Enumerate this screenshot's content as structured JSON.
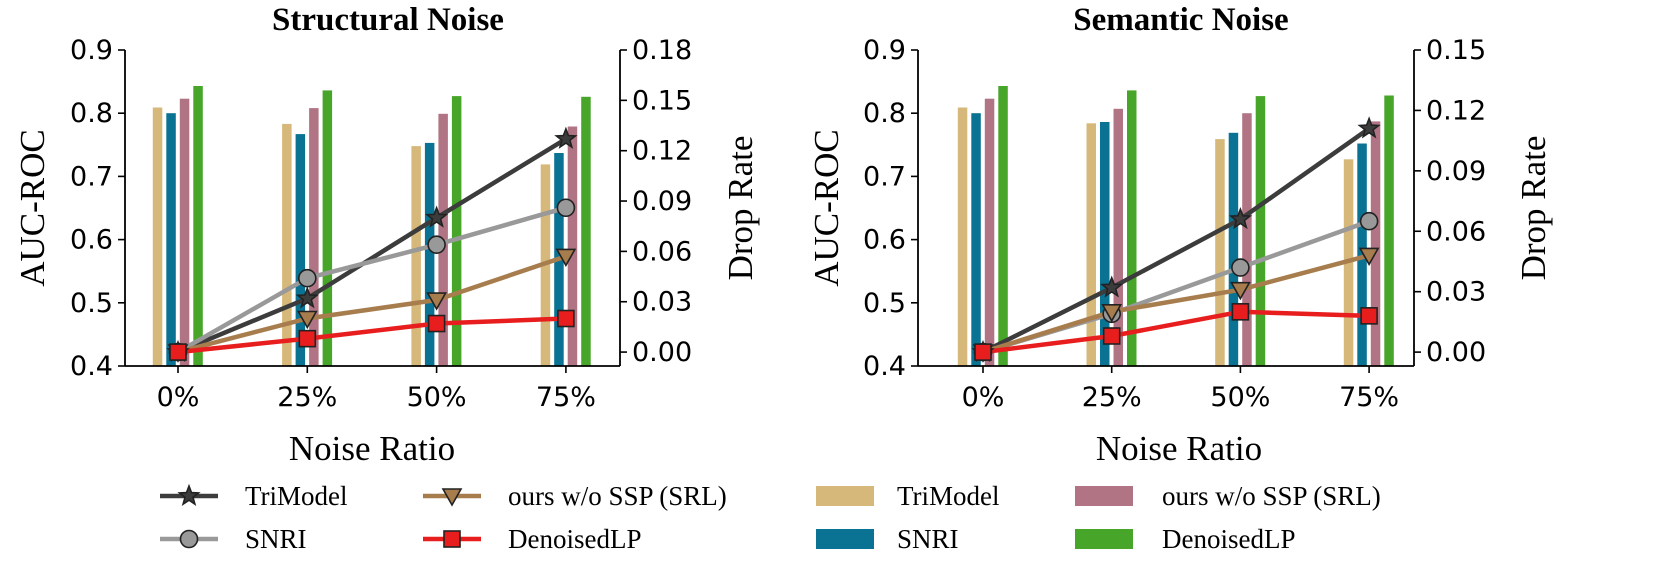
{
  "chart_data": [
    {
      "type": "bar+line",
      "title": "Structural Noise",
      "xlabel": "Noise Ratio",
      "ylabel": "AUC-ROC",
      "y2label": "Drop Rate",
      "categories": [
        "0%",
        "25%",
        "50%",
        "75%"
      ],
      "ylim": [
        0.4,
        0.9
      ],
      "yticks": [
        "0.4",
        "0.5",
        "0.6",
        "0.7",
        "0.8",
        "0.9"
      ],
      "y2lim": [
        -0.0083,
        0.18
      ],
      "y2ticks": [
        "0.00",
        "0.03",
        "0.06",
        "0.09",
        "0.12",
        "0.15",
        "0.18"
      ],
      "bar_series": [
        {
          "name": "TriModel",
          "color": "#D6B87A",
          "values": [
            0.809,
            0.783,
            0.748,
            0.719
          ]
        },
        {
          "name": "SNRI",
          "color": "#0A7393",
          "values": [
            0.8,
            0.767,
            0.753,
            0.737
          ]
        },
        {
          "name": "ours w/o SSP (SRL)",
          "color": "#B07484",
          "values": [
            0.823,
            0.808,
            0.799,
            0.779
          ]
        },
        {
          "name": "DenoisedLP",
          "color": "#47A62A",
          "values": [
            0.843,
            0.836,
            0.827,
            0.826
          ]
        }
      ],
      "line_series": [
        {
          "name": "TriModel",
          "color": "#3C3C3C",
          "marker": "star",
          "values": [
            0.0,
            0.032,
            0.08,
            0.127
          ]
        },
        {
          "name": "SNRI",
          "color": "#999999",
          "marker": "circle",
          "values": [
            0.0,
            0.044,
            0.064,
            0.086
          ]
        },
        {
          "name": "ours w/o SSP (SRL)",
          "color": "#A77D4D",
          "marker": "triangle-down",
          "values": [
            0.0,
            0.02,
            0.031,
            0.057
          ]
        },
        {
          "name": "DenoisedLP",
          "color": "#E81E1E",
          "marker": "square",
          "values": [
            0.0,
            0.008,
            0.017,
            0.02
          ]
        }
      ]
    },
    {
      "type": "bar+line",
      "title": "Semantic Noise",
      "xlabel": "Noise Ratio",
      "ylabel": "AUC-ROC",
      "y2label": "Drop Rate",
      "categories": [
        "0%",
        "25%",
        "50%",
        "75%"
      ],
      "ylim": [
        0.4,
        0.9
      ],
      "yticks": [
        "0.4",
        "0.5",
        "0.6",
        "0.7",
        "0.8",
        "0.9"
      ],
      "y2lim": [
        -0.0069,
        0.15
      ],
      "y2ticks": [
        "0.00",
        "0.03",
        "0.06",
        "0.09",
        "0.12",
        "0.15"
      ],
      "bar_series": [
        {
          "name": "TriModel",
          "color": "#D6B87A",
          "values": [
            0.809,
            0.784,
            0.759,
            0.727
          ]
        },
        {
          "name": "SNRI",
          "color": "#0A7393",
          "values": [
            0.8,
            0.786,
            0.769,
            0.752
          ]
        },
        {
          "name": "ours w/o SSP (SRL)",
          "color": "#B07484",
          "values": [
            0.823,
            0.807,
            0.8,
            0.787
          ]
        },
        {
          "name": "DenoisedLP",
          "color": "#47A62A",
          "values": [
            0.843,
            0.836,
            0.827,
            0.828
          ]
        }
      ],
      "line_series": [
        {
          "name": "TriModel",
          "color": "#3C3C3C",
          "marker": "star",
          "values": [
            0.0,
            0.032,
            0.066,
            0.111
          ]
        },
        {
          "name": "SNRI",
          "color": "#999999",
          "marker": "circle",
          "values": [
            0.0,
            0.019,
            0.042,
            0.065
          ]
        },
        {
          "name": "ours w/o SSP (SRL)",
          "color": "#A77D4D",
          "marker": "triangle-down",
          "values": [
            0.0,
            0.02,
            0.031,
            0.048
          ]
        },
        {
          "name": "DenoisedLP",
          "color": "#E81E1E",
          "marker": "square",
          "values": [
            0.0,
            0.008,
            0.02,
            0.018
          ]
        }
      ]
    }
  ],
  "legend": {
    "lines": [
      {
        "label": "TriModel",
        "color": "#3C3C3C",
        "marker": "star"
      },
      {
        "label": "SNRI",
        "color": "#999999",
        "marker": "circle"
      },
      {
        "label": "ours w/o SSP (SRL)",
        "color": "#A77D4D",
        "marker": "triangle-down"
      },
      {
        "label": "DenoisedLP",
        "color": "#E81E1E",
        "marker": "square"
      }
    ],
    "bars": [
      {
        "label": "TriModel",
        "color": "#D6B87A"
      },
      {
        "label": "SNRI",
        "color": "#0A7393"
      },
      {
        "label": "ours w/o SSP (SRL)",
        "color": "#B07484"
      },
      {
        "label": "DenoisedLP",
        "color": "#47A62A"
      }
    ]
  }
}
